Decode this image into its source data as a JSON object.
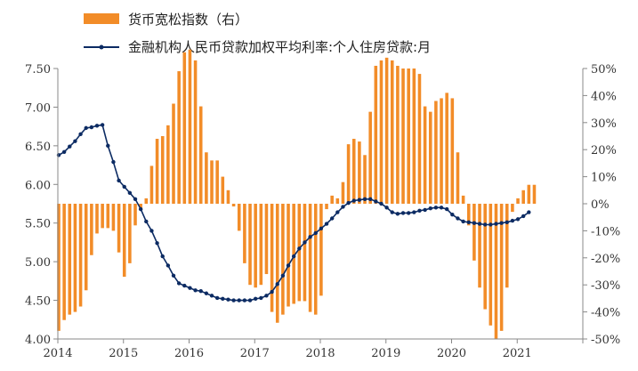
{
  "chart_data": {
    "type": "bar+line",
    "legend": {
      "placement": "top-left",
      "items": [
        {
          "key": "bar",
          "label": "货币宽松指数（右）"
        },
        {
          "key": "line",
          "label": "金融机构人民币贷款加权平均利率:个人住房贷款:月"
        }
      ]
    },
    "x_axis": {
      "tick_labels": [
        "2014",
        "2015",
        "2016",
        "2017",
        "2018",
        "2019",
        "2020",
        "2021"
      ],
      "range": [
        2014,
        2022.0
      ]
    },
    "y_left": {
      "range": [
        4.0,
        7.5
      ],
      "ticks": [
        "4.00",
        "4.50",
        "5.00",
        "5.50",
        "6.00",
        "6.50",
        "7.00",
        "7.50"
      ]
    },
    "y_right": {
      "range": [
        -0.5,
        0.5
      ],
      "ticks": [
        "-50%",
        "-40%",
        "-30%",
        "-20%",
        "-10%",
        "0%",
        "10%",
        "20%",
        "30%",
        "40%",
        "50%"
      ]
    },
    "colors": {
      "bar": "#F28C28",
      "line": "#0C2B63",
      "axis": "#888888"
    },
    "bar_series": {
      "name": "货币宽松指数（右）",
      "x_start": 2014.0,
      "step": 0.0833,
      "values": [
        -0.47,
        -0.43,
        -0.41,
        -0.4,
        -0.38,
        -0.32,
        -0.19,
        -0.11,
        -0.09,
        -0.09,
        -0.1,
        -0.18,
        -0.27,
        -0.22,
        -0.08,
        -0.02,
        0.02,
        0.14,
        0.24,
        0.25,
        0.29,
        0.37,
        0.49,
        0.56,
        0.57,
        0.53,
        0.36,
        0.19,
        0.16,
        0.16,
        0.1,
        0.05,
        -0.01,
        -0.1,
        -0.22,
        -0.3,
        -0.31,
        -0.3,
        -0.26,
        -0.4,
        -0.44,
        -0.41,
        -0.38,
        -0.37,
        -0.36,
        -0.36,
        -0.4,
        -0.41,
        -0.34,
        -0.02,
        0.03,
        0.02,
        0.08,
        0.22,
        0.24,
        0.23,
        0.18,
        0.34,
        0.51,
        0.53,
        0.54,
        0.53,
        0.51,
        0.5,
        0.5,
        0.5,
        0.48,
        0.36,
        0.34,
        0.38,
        0.39,
        0.41,
        0.39,
        0.19,
        0.03,
        -0.08,
        -0.21,
        -0.31,
        -0.39,
        -0.45,
        -0.5,
        -0.47,
        -0.31,
        -0.03,
        0.02,
        0.05,
        0.07,
        0.07
      ]
    },
    "line_series": {
      "name": "金融机构人民币贷款加权平均利率:个人住房贷款:月",
      "x_start": 2014.0,
      "step": 0.0833,
      "values": [
        6.38,
        6.42,
        6.49,
        6.56,
        6.65,
        6.73,
        6.74,
        6.76,
        6.77,
        6.5,
        6.29,
        6.05,
        5.97,
        5.89,
        5.81,
        5.68,
        5.52,
        5.4,
        5.24,
        5.07,
        4.95,
        4.82,
        4.72,
        4.69,
        4.66,
        4.63,
        4.62,
        4.59,
        4.56,
        4.53,
        4.52,
        4.51,
        4.5,
        4.5,
        4.5,
        4.5,
        4.52,
        4.53,
        4.56,
        4.61,
        4.71,
        4.82,
        4.95,
        5.07,
        5.17,
        5.25,
        5.32,
        5.37,
        5.43,
        5.49,
        5.56,
        5.64,
        5.71,
        5.76,
        5.79,
        5.8,
        5.81,
        5.81,
        5.78,
        5.75,
        5.7,
        5.64,
        5.62,
        5.63,
        5.63,
        5.64,
        5.66,
        5.67,
        5.69,
        5.7,
        5.7,
        5.68,
        5.61,
        5.56,
        5.52,
        5.51,
        5.5,
        5.49,
        5.48,
        5.48,
        5.49,
        5.5,
        5.51,
        5.53,
        5.55,
        5.59,
        5.64
      ]
    }
  }
}
